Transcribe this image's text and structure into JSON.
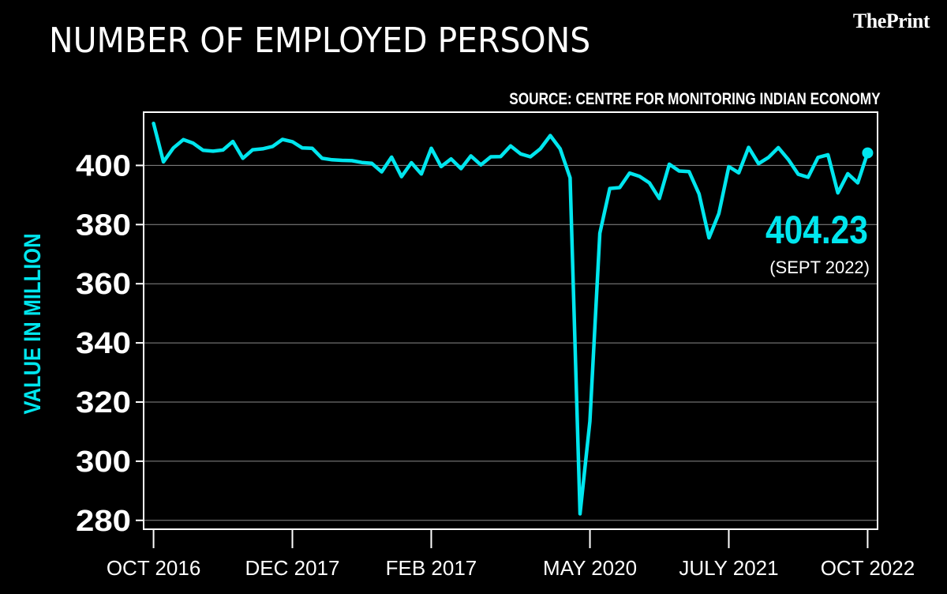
{
  "brand": "ThePrint",
  "colors": {
    "background": "#000000",
    "line": "#00e6ee",
    "text": "#ffffff",
    "grid": "#8a8a8a"
  },
  "chart_data": {
    "type": "line",
    "title": "NUMBER OF EMPLOYED PERSONS",
    "source": "SOURCE: CENTRE FOR MONITORING INDIAN ECONOMY",
    "ylabel": "VALUE IN MILLION",
    "ylim": [
      277,
      418
    ],
    "yticks": [
      400,
      380,
      360,
      340,
      320,
      300,
      280
    ],
    "xlim": [
      -1,
      73
    ],
    "xtick_positions": [
      0,
      14,
      28,
      44,
      58,
      72
    ],
    "xticks": [
      "OCT 2016",
      "DEC 2017",
      "FEB 2017",
      "MAY 2020",
      "JULY 2021",
      "OCT 2022"
    ],
    "grid": "horizontal",
    "series": [
      {
        "values": [
          414.2,
          401.2,
          405.9,
          408.7,
          407.5,
          405.1,
          404.8,
          405.2,
          408.1,
          402.4,
          405.3,
          405.6,
          406.4,
          408.8,
          408.0,
          405.9,
          405.8,
          402.4,
          401.9,
          401.7,
          401.6,
          401.0,
          400.7,
          397.8,
          402.8,
          396.2,
          400.9,
          397.1,
          405.8,
          399.6,
          402.2,
          398.9,
          403.2,
          400.2,
          402.9,
          403.0,
          406.6,
          403.9,
          402.9,
          405.6,
          410.1,
          405.6,
          395.8,
          282.2,
          313.5,
          377.1,
          392.2,
          392.5,
          397.4,
          396.3,
          394.1,
          388.8,
          400.4,
          398.1,
          397.9,
          390.4,
          375.5,
          383.7,
          399.6,
          397.5,
          406.1,
          400.6,
          402.7,
          406.0,
          402.0,
          397.0,
          396.0,
          402.7,
          403.6,
          390.7,
          397.2,
          394.1,
          404.23
        ]
      }
    ],
    "annotation": {
      "value": "404.23",
      "label": "(SEPT 2022)"
    }
  }
}
